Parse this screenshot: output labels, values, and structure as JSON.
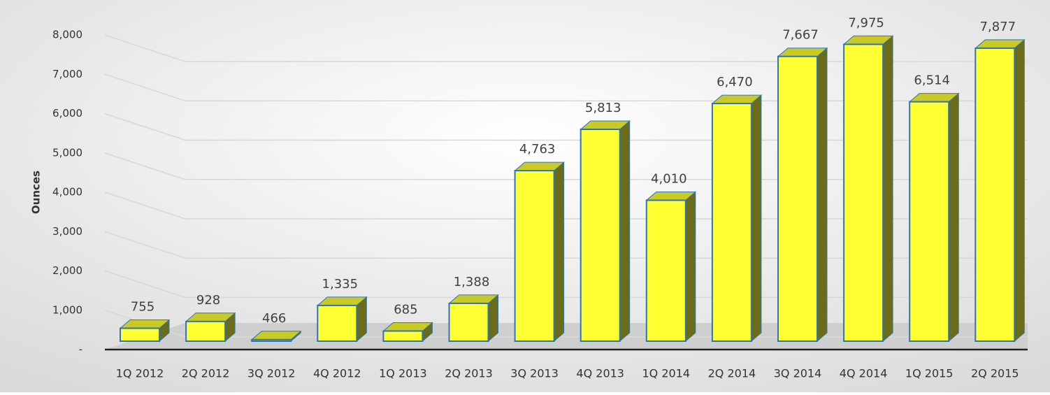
{
  "chart_data": {
    "type": "bar3d",
    "y_label": "Ounces",
    "categories": [
      "1Q 2012",
      "2Q 2012",
      "3Q 2012",
      "4Q 2012",
      "1Q 2013",
      "2Q 2013",
      "3Q 2013",
      "4Q 2013",
      "1Q 2014",
      "2Q 2014",
      "3Q 2014",
      "4Q 2014",
      "1Q 2015",
      "2Q 2015"
    ],
    "values": [
      755,
      928,
      466,
      1335,
      685,
      1388,
      4763,
      5813,
      4010,
      6470,
      7667,
      7975,
      6514,
      7877
    ],
    "value_labels": [
      "755",
      "928",
      "466",
      "1,335",
      "685",
      "1,388",
      "4,763",
      "5,813",
      "4,010",
      "6,470",
      "7,667",
      "7,975",
      "6,514",
      "7,877"
    ],
    "color": "#ffff33",
    "ylim": [
      0,
      8000
    ],
    "yticks": [
      {
        "value": 0,
        "label": "-"
      },
      {
        "value": 1000,
        "label": "1,000"
      },
      {
        "value": 2000,
        "label": "2,000"
      },
      {
        "value": 3000,
        "label": "3,000"
      },
      {
        "value": 4000,
        "label": "4,000"
      },
      {
        "value": 5000,
        "label": "5,000"
      },
      {
        "value": 6000,
        "label": "6,000"
      },
      {
        "value": 7000,
        "label": "7,000"
      },
      {
        "value": 8000,
        "label": "8,000"
      }
    ],
    "grid": true
  }
}
